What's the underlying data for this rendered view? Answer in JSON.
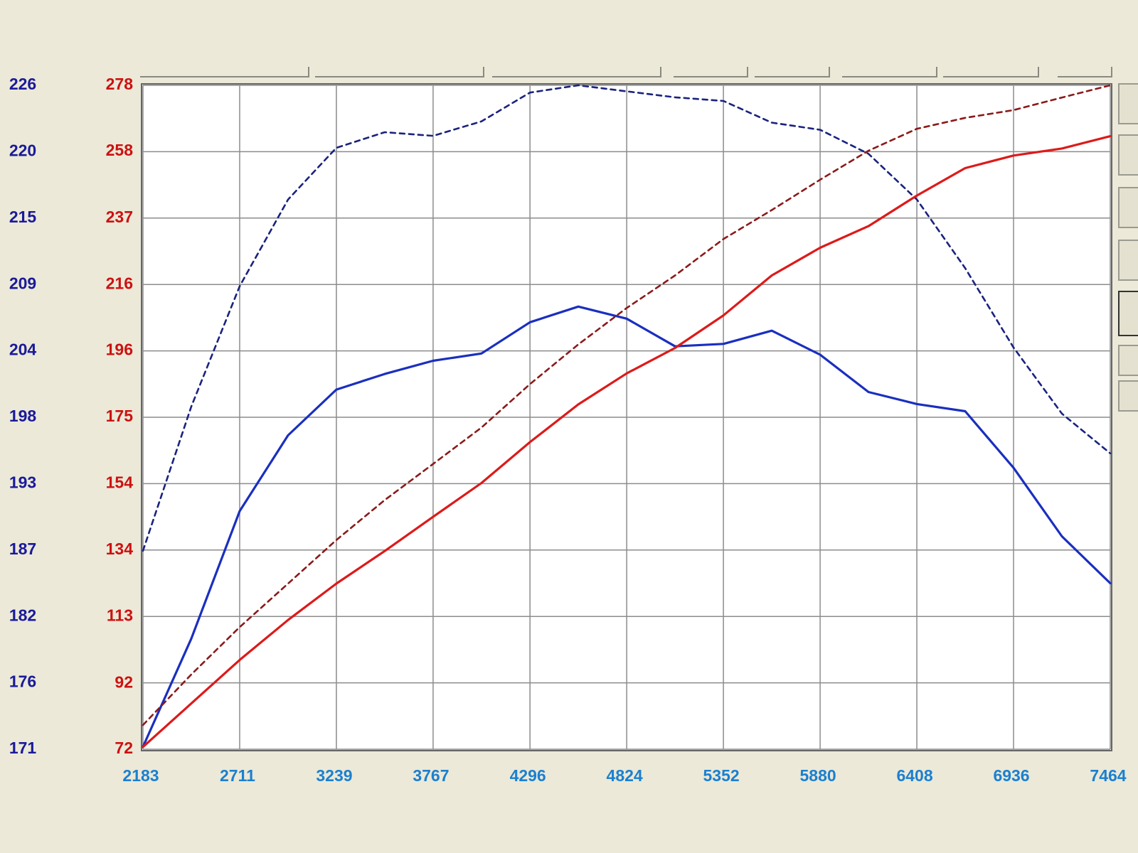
{
  "chart_data": {
    "type": "line",
    "x": [
      2183,
      2447,
      2711,
      2975,
      3239,
      3503,
      3767,
      4031,
      4296,
      4560,
      4824,
      5088,
      5352,
      5616,
      5880,
      6144,
      6408,
      6672,
      6936,
      7200,
      7464
    ],
    "xlim": [
      2183,
      7464
    ],
    "xticks": [
      2183,
      2711,
      3239,
      3767,
      4296,
      4824,
      5352,
      5880,
      6408,
      6936,
      7464
    ],
    "ylim": [
      170.8,
      226
    ],
    "yticks": [
      {
        "value": 170.8,
        "label": "171"
      },
      {
        "value": 176.32,
        "label": "176"
      },
      {
        "value": 181.84,
        "label": "182"
      },
      {
        "value": 187.36,
        "label": "187"
      },
      {
        "value": 192.88,
        "label": "193"
      },
      {
        "value": 198.4,
        "label": "198"
      },
      {
        "value": 203.92,
        "label": "204"
      },
      {
        "value": 209.44,
        "label": "209"
      },
      {
        "value": 214.96,
        "label": "215"
      },
      {
        "value": 220.48,
        "label": "220"
      },
      {
        "value": 226,
        "label": "226"
      }
    ],
    "y2lim": [
      72,
      278
    ],
    "y2ticks": [
      72,
      {
        "value": 92.4,
        "label": "92"
      },
      {
        "value": 113.2,
        "label": "113"
      },
      {
        "value": 133.8,
        "label": "134"
      },
      {
        "value": 154.4,
        "label": "154"
      },
      175,
      {
        "value": 195.6,
        "label": "196"
      },
      {
        "value": 216.2,
        "label": "216"
      },
      {
        "value": 236.8,
        "label": "237"
      },
      {
        "value": 257.5,
        "label": "258"
      },
      278
    ],
    "ytick_color": "#1a1a9a",
    "y2tick_color": "#cc1111",
    "xtick_color": "#1a80d0",
    "grid": true,
    "series": [
      {
        "color": "#1a2fbf",
        "style": "solid",
        "values": [
          171.0,
          180.0,
          190.6,
          196.9,
          200.7,
          202.0,
          203.1,
          203.7,
          206.3,
          207.6,
          206.6,
          204.3,
          204.5,
          205.6,
          203.6,
          200.5,
          199.5,
          198.9,
          194.2,
          188.5,
          184.6
        ]
      },
      {
        "color": "#1a237e",
        "style": "dashed",
        "values": [
          187.3,
          199.3,
          209.3,
          216.5,
          220.8,
          222.1,
          221.8,
          223.0,
          225.4,
          226.0,
          225.5,
          225.0,
          224.7,
          222.9,
          222.3,
          220.3,
          216.5,
          210.8,
          204.2,
          198.7,
          195.4
        ]
      },
      {
        "color": "#dd1a1a",
        "style": "solid",
        "axis": "y2",
        "values": [
          72.7,
          86.2,
          99.7,
          112.1,
          123.4,
          133.5,
          144.1,
          154.6,
          167.3,
          179.0,
          188.6,
          196.5,
          206.6,
          219.0,
          227.6,
          234.3,
          243.8,
          252.3,
          256.2,
          258.4,
          262.2
        ]
      },
      {
        "color": "#8b1a1a",
        "style": "dashed",
        "axis": "y2",
        "values": [
          79.5,
          95.2,
          109.9,
          123.4,
          136.9,
          149.3,
          160.5,
          171.8,
          185.3,
          197.6,
          208.9,
          219.0,
          230.3,
          239.3,
          248.7,
          257.7,
          264.5,
          267.9,
          270.3,
          274.2,
          278.0
        ]
      }
    ]
  }
}
